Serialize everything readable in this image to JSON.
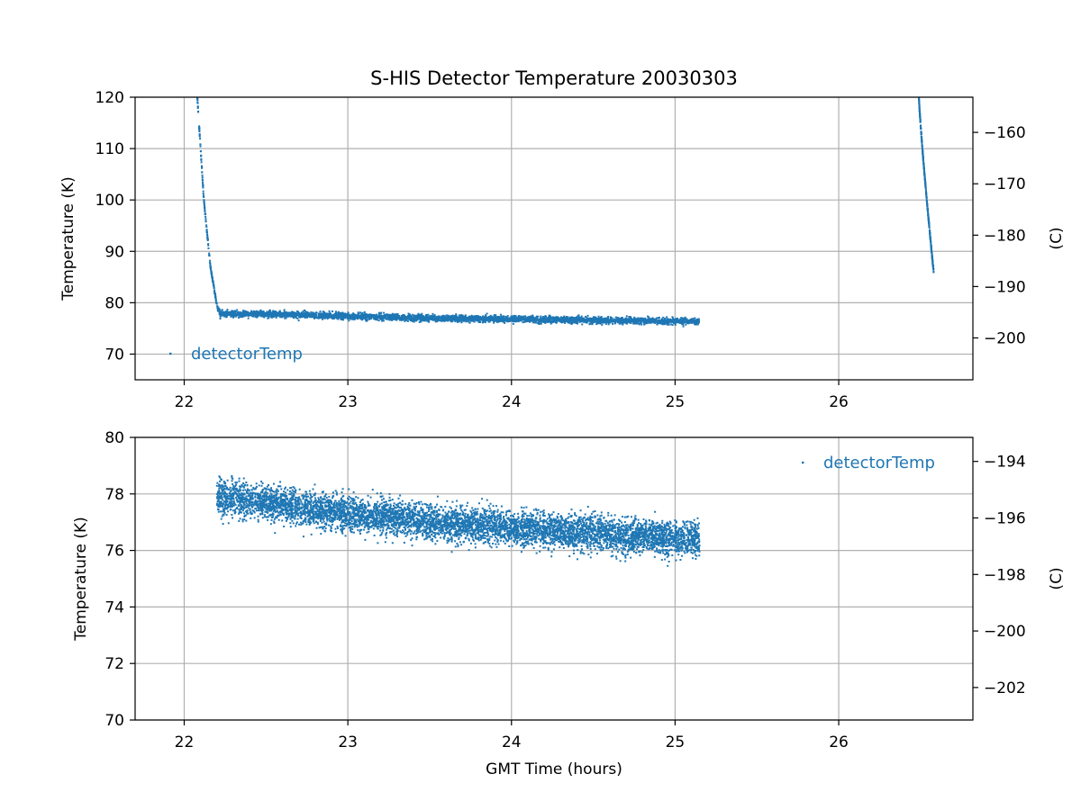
{
  "chart_data": [
    {
      "type": "scatter",
      "title": "S-HIS Detector Temperature 20030303",
      "xlabel": "",
      "ylabel": "Temperature (K)",
      "ylabel_right": "(C)",
      "xlim": [
        21.7,
        26.82
      ],
      "ylim": [
        65,
        120
      ],
      "ylim_right": [
        -208.15,
        -153.15
      ],
      "x_ticks": [
        22,
        23,
        24,
        25,
        26
      ],
      "y_ticks": [
        70,
        80,
        90,
        100,
        110,
        120
      ],
      "y_ticks_right": [
        -160,
        -170,
        -180,
        -190,
        -200
      ],
      "grid": true,
      "legend": "left",
      "series": [
        {
          "name": "detectorTemp",
          "color": "#1f77b4",
          "marker": "point",
          "trend": {
            "x": [
              22.08,
              22.12,
              22.16,
              22.2,
              22.22,
              22.5,
              23.0,
              23.5,
              24.0,
              24.5,
              25.0,
              25.15
            ],
            "y": [
              120,
              100,
              87,
              79.5,
              77.8,
              77.8,
              77.4,
              77.0,
              76.8,
              76.6,
              76.4,
              76.4
            ]
          },
          "spread": 1.3,
          "second_segment": {
            "x": [
              26.49,
              26.58
            ],
            "y": [
              120,
              86
            ]
          }
        }
      ]
    },
    {
      "type": "scatter",
      "title": "",
      "xlabel": "GMT Time (hours)",
      "ylabel": "Temperature (K)",
      "ylabel_right": "(C)",
      "xlim": [
        21.7,
        26.82
      ],
      "ylim": [
        70,
        80
      ],
      "ylim_right": [
        -203.15,
        -193.15
      ],
      "x_ticks": [
        22,
        23,
        24,
        25,
        26
      ],
      "y_ticks": [
        70,
        72,
        74,
        76,
        78,
        80
      ],
      "y_ticks_right": [
        -194,
        -196,
        -198,
        -200,
        -202
      ],
      "grid": true,
      "legend": "top-right",
      "series": [
        {
          "name": "detectorTemp",
          "color": "#1f77b4",
          "marker": "point",
          "trend": {
            "x": [
              22.2,
              22.5,
              23.0,
              23.5,
              24.0,
              24.5,
              25.0,
              25.15
            ],
            "y": [
              77.9,
              77.7,
              77.3,
              77.0,
              76.8,
              76.6,
              76.4,
              76.4
            ]
          },
          "spread": 1.3
        }
      ]
    }
  ]
}
